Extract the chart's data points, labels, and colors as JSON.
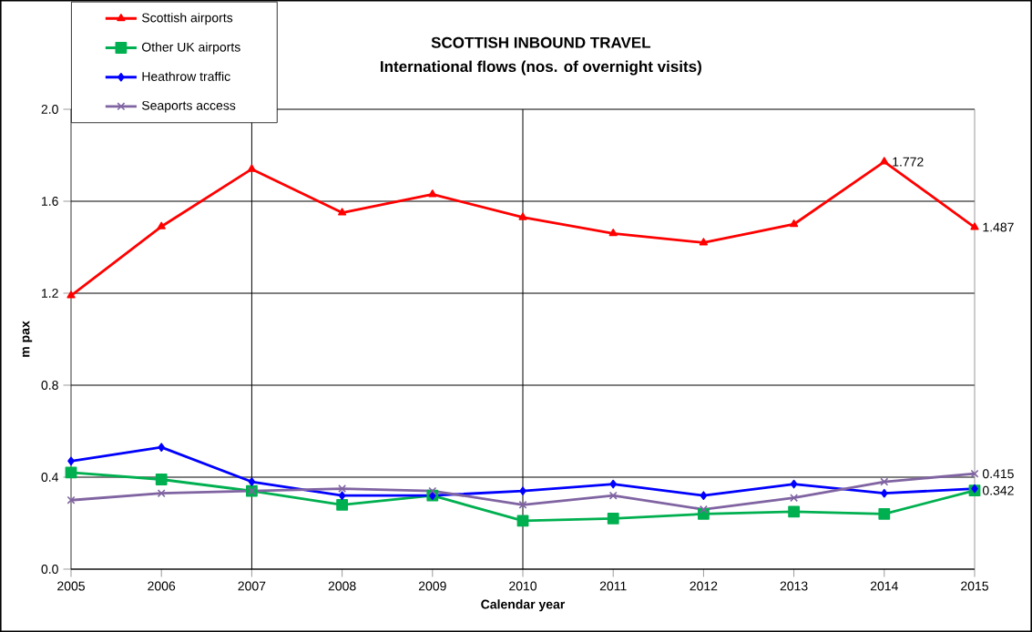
{
  "chart_data": {
    "type": "line",
    "title": "SCOTTISH INBOUND TRAVEL",
    "subtitle": "International flows (nos. of overnight visits)",
    "xlabel": "Calendar year",
    "ylabel": "m pax",
    "x": [
      2005,
      2006,
      2007,
      2008,
      2009,
      2010,
      2011,
      2012,
      2013,
      2014,
      2015
    ],
    "series": [
      {
        "name": "Scottish airports",
        "color": "#ff0000",
        "marker": "triangle",
        "values": [
          1.19,
          1.49,
          1.74,
          1.55,
          1.63,
          1.53,
          1.46,
          1.42,
          1.5,
          1.772,
          1.487
        ],
        "value_labels": [
          null,
          null,
          null,
          null,
          null,
          null,
          null,
          null,
          null,
          "1.772",
          "1.487"
        ]
      },
      {
        "name": "Other UK airports",
        "color": "#00b050",
        "marker": "square",
        "values": [
          0.42,
          0.39,
          0.34,
          0.28,
          0.32,
          0.21,
          0.22,
          0.24,
          0.25,
          0.24,
          0.342
        ],
        "value_labels": [
          null,
          null,
          null,
          null,
          null,
          null,
          null,
          null,
          null,
          null,
          "0.342"
        ]
      },
      {
        "name": "Heathrow traffic",
        "color": "#0000ff",
        "marker": "diamond",
        "values": [
          0.47,
          0.53,
          0.38,
          0.32,
          0.32,
          0.34,
          0.37,
          0.32,
          0.37,
          0.33,
          0.35
        ]
      },
      {
        "name": "Seaports access",
        "color": "#8064a2",
        "marker": "cross",
        "values": [
          0.3,
          0.33,
          0.34,
          0.35,
          0.34,
          0.28,
          0.32,
          0.26,
          0.31,
          0.38,
          0.415
        ],
        "value_labels": [
          null,
          null,
          null,
          null,
          null,
          null,
          null,
          null,
          null,
          null,
          "0.415"
        ]
      }
    ],
    "xlim": [
      2005,
      2015
    ],
    "xticks": [
      2005,
      2006,
      2007,
      2008,
      2009,
      2010,
      2011,
      2012,
      2013,
      2014,
      2015
    ],
    "ylim": [
      0,
      2
    ],
    "yticks": [
      {
        "value": 0,
        "label": "0.0"
      },
      {
        "value": 0.4,
        "label": "0.4"
      },
      {
        "value": 0.8,
        "label": "0.8"
      },
      {
        "value": 1.2,
        "label": "1.2"
      },
      {
        "value": 1.6,
        "label": "1.6"
      },
      {
        "value": 2.0,
        "label": "2.0"
      }
    ],
    "ref_lines": [
      {
        "axis": "x",
        "value": 2007,
        "color": "#000000"
      },
      {
        "axis": "x",
        "value": 2010,
        "color": "#000000"
      }
    ],
    "grid": "y",
    "legend": "top left",
    "line_style": "solid"
  }
}
